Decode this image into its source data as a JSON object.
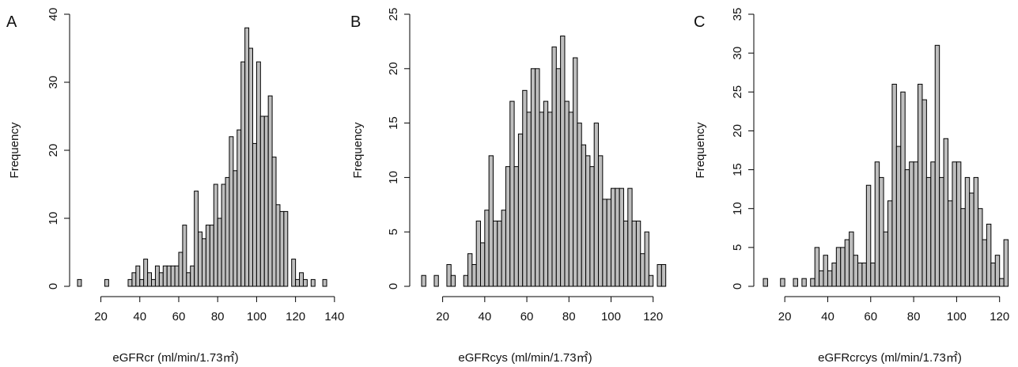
{
  "chart_data": [
    {
      "type": "bar",
      "panel": "A",
      "xlabel": "eGFRcr (ml/min/1.73㎡)",
      "ylabel": "Frequency",
      "bin_width": 2,
      "xlim": [
        8,
        136
      ],
      "ylim": [
        0,
        40
      ],
      "xticks": [
        20,
        40,
        60,
        80,
        100,
        120,
        140
      ],
      "yticks": [
        0,
        10,
        20,
        30,
        40
      ],
      "bins": [
        {
          "start": 8,
          "count": 1
        },
        {
          "start": 22,
          "count": 1
        },
        {
          "start": 34,
          "count": 1
        },
        {
          "start": 36,
          "count": 2
        },
        {
          "start": 38,
          "count": 3
        },
        {
          "start": 40,
          "count": 1
        },
        {
          "start": 42,
          "count": 4
        },
        {
          "start": 44,
          "count": 2
        },
        {
          "start": 46,
          "count": 1
        },
        {
          "start": 48,
          "count": 3
        },
        {
          "start": 50,
          "count": 2
        },
        {
          "start": 52,
          "count": 3
        },
        {
          "start": 54,
          "count": 3
        },
        {
          "start": 56,
          "count": 3
        },
        {
          "start": 58,
          "count": 3
        },
        {
          "start": 60,
          "count": 5
        },
        {
          "start": 62,
          "count": 9
        },
        {
          "start": 64,
          "count": 2
        },
        {
          "start": 66,
          "count": 3
        },
        {
          "start": 68,
          "count": 14
        },
        {
          "start": 70,
          "count": 8
        },
        {
          "start": 72,
          "count": 7
        },
        {
          "start": 74,
          "count": 9
        },
        {
          "start": 76,
          "count": 9
        },
        {
          "start": 78,
          "count": 15
        },
        {
          "start": 80,
          "count": 10
        },
        {
          "start": 82,
          "count": 15
        },
        {
          "start": 84,
          "count": 16
        },
        {
          "start": 86,
          "count": 22
        },
        {
          "start": 88,
          "count": 17
        },
        {
          "start": 90,
          "count": 23
        },
        {
          "start": 92,
          "count": 33
        },
        {
          "start": 94,
          "count": 38
        },
        {
          "start": 96,
          "count": 35
        },
        {
          "start": 98,
          "count": 21
        },
        {
          "start": 100,
          "count": 33
        },
        {
          "start": 102,
          "count": 25
        },
        {
          "start": 104,
          "count": 25
        },
        {
          "start": 106,
          "count": 28
        },
        {
          "start": 108,
          "count": 19
        },
        {
          "start": 110,
          "count": 12
        },
        {
          "start": 112,
          "count": 11
        },
        {
          "start": 114,
          "count": 11
        },
        {
          "start": 118,
          "count": 4
        },
        {
          "start": 120,
          "count": 1
        },
        {
          "start": 122,
          "count": 2
        },
        {
          "start": 124,
          "count": 1
        },
        {
          "start": 128,
          "count": 1
        },
        {
          "start": 134,
          "count": 1
        }
      ]
    },
    {
      "type": "bar",
      "panel": "B",
      "xlabel": "eGFRcys (ml/min/1.73㎡)",
      "ylabel": "Frequency",
      "bin_width": 2,
      "xlim": [
        10,
        128
      ],
      "ylim": [
        0,
        25
      ],
      "xticks": [
        20,
        40,
        60,
        80,
        100,
        120
      ],
      "yticks": [
        0,
        5,
        10,
        15,
        20,
        25
      ],
      "bins": [
        {
          "start": 10,
          "count": 1
        },
        {
          "start": 16,
          "count": 1
        },
        {
          "start": 22,
          "count": 2
        },
        {
          "start": 24,
          "count": 1
        },
        {
          "start": 30,
          "count": 1
        },
        {
          "start": 32,
          "count": 3
        },
        {
          "start": 34,
          "count": 2
        },
        {
          "start": 36,
          "count": 6
        },
        {
          "start": 38,
          "count": 4
        },
        {
          "start": 40,
          "count": 7
        },
        {
          "start": 42,
          "count": 12
        },
        {
          "start": 44,
          "count": 6
        },
        {
          "start": 46,
          "count": 6
        },
        {
          "start": 48,
          "count": 7
        },
        {
          "start": 50,
          "count": 11
        },
        {
          "start": 52,
          "count": 17
        },
        {
          "start": 54,
          "count": 11
        },
        {
          "start": 56,
          "count": 14
        },
        {
          "start": 58,
          "count": 18
        },
        {
          "start": 60,
          "count": 16
        },
        {
          "start": 62,
          "count": 20
        },
        {
          "start": 64,
          "count": 20
        },
        {
          "start": 66,
          "count": 16
        },
        {
          "start": 68,
          "count": 17
        },
        {
          "start": 70,
          "count": 16
        },
        {
          "start": 72,
          "count": 22
        },
        {
          "start": 74,
          "count": 20
        },
        {
          "start": 76,
          "count": 23
        },
        {
          "start": 78,
          "count": 17
        },
        {
          "start": 80,
          "count": 16
        },
        {
          "start": 82,
          "count": 21
        },
        {
          "start": 84,
          "count": 15
        },
        {
          "start": 86,
          "count": 13
        },
        {
          "start": 88,
          "count": 12
        },
        {
          "start": 90,
          "count": 11
        },
        {
          "start": 92,
          "count": 15
        },
        {
          "start": 94,
          "count": 12
        },
        {
          "start": 96,
          "count": 8
        },
        {
          "start": 98,
          "count": 8
        },
        {
          "start": 100,
          "count": 9
        },
        {
          "start": 102,
          "count": 9
        },
        {
          "start": 104,
          "count": 9
        },
        {
          "start": 106,
          "count": 6
        },
        {
          "start": 108,
          "count": 9
        },
        {
          "start": 110,
          "count": 6
        },
        {
          "start": 112,
          "count": 6
        },
        {
          "start": 114,
          "count": 3
        },
        {
          "start": 116,
          "count": 5
        },
        {
          "start": 118,
          "count": 1
        },
        {
          "start": 122,
          "count": 2
        },
        {
          "start": 124,
          "count": 2
        }
      ]
    },
    {
      "type": "bar",
      "panel": "C",
      "xlabel": "eGFRcrcys (ml/min/1.73㎡)",
      "ylabel": "Frequency",
      "bin_width": 2,
      "xlim": [
        10,
        126
      ],
      "ylim": [
        0,
        35
      ],
      "xticks": [
        20,
        40,
        60,
        80,
        100,
        120
      ],
      "yticks": [
        0,
        5,
        10,
        15,
        20,
        25,
        30,
        35
      ],
      "bins": [
        {
          "start": 10,
          "count": 1
        },
        {
          "start": 18,
          "count": 1
        },
        {
          "start": 24,
          "count": 1
        },
        {
          "start": 28,
          "count": 1
        },
        {
          "start": 32,
          "count": 1
        },
        {
          "start": 34,
          "count": 5
        },
        {
          "start": 36,
          "count": 2
        },
        {
          "start": 38,
          "count": 4
        },
        {
          "start": 40,
          "count": 2
        },
        {
          "start": 42,
          "count": 3
        },
        {
          "start": 44,
          "count": 5
        },
        {
          "start": 46,
          "count": 5
        },
        {
          "start": 48,
          "count": 6
        },
        {
          "start": 50,
          "count": 7
        },
        {
          "start": 52,
          "count": 4
        },
        {
          "start": 54,
          "count": 3
        },
        {
          "start": 56,
          "count": 3
        },
        {
          "start": 58,
          "count": 13
        },
        {
          "start": 60,
          "count": 3
        },
        {
          "start": 62,
          "count": 16
        },
        {
          "start": 64,
          "count": 14
        },
        {
          "start": 66,
          "count": 7
        },
        {
          "start": 68,
          "count": 11
        },
        {
          "start": 70,
          "count": 26
        },
        {
          "start": 72,
          "count": 18
        },
        {
          "start": 74,
          "count": 25
        },
        {
          "start": 76,
          "count": 15
        },
        {
          "start": 78,
          "count": 16
        },
        {
          "start": 80,
          "count": 16
        },
        {
          "start": 82,
          "count": 26
        },
        {
          "start": 84,
          "count": 24
        },
        {
          "start": 86,
          "count": 14
        },
        {
          "start": 88,
          "count": 16
        },
        {
          "start": 90,
          "count": 31
        },
        {
          "start": 92,
          "count": 14
        },
        {
          "start": 94,
          "count": 19
        },
        {
          "start": 96,
          "count": 11
        },
        {
          "start": 98,
          "count": 16
        },
        {
          "start": 100,
          "count": 16
        },
        {
          "start": 102,
          "count": 10
        },
        {
          "start": 104,
          "count": 14
        },
        {
          "start": 106,
          "count": 12
        },
        {
          "start": 108,
          "count": 14
        },
        {
          "start": 110,
          "count": 10
        },
        {
          "start": 112,
          "count": 6
        },
        {
          "start": 114,
          "count": 8
        },
        {
          "start": 116,
          "count": 3
        },
        {
          "start": 118,
          "count": 4
        },
        {
          "start": 120,
          "count": 1
        },
        {
          "start": 122,
          "count": 6
        }
      ]
    }
  ],
  "colors": {
    "bar_fill": "#bebebe",
    "bar_stroke": "#000000",
    "axis": "#000000"
  }
}
